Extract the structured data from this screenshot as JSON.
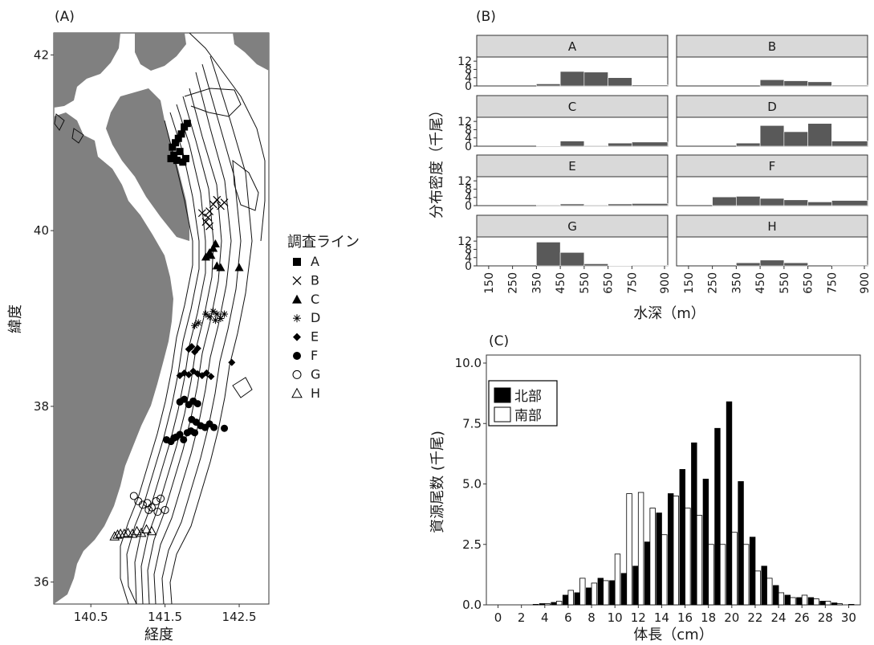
{
  "panel_a": {
    "label": "(A)",
    "xlabel": "経度",
    "ylabel": "緯度",
    "x_ticks": [
      "140.5",
      "141.5",
      "142.5"
    ],
    "y_ticks": [
      "36",
      "38",
      "40",
      "42"
    ],
    "legend_title": "調査ライン",
    "legend": [
      {
        "key": "A",
        "shape": "square-filled"
      },
      {
        "key": "B",
        "shape": "cross"
      },
      {
        "key": "C",
        "shape": "triangle-filled"
      },
      {
        "key": "D",
        "shape": "asterisk"
      },
      {
        "key": "E",
        "shape": "diamond-filled"
      },
      {
        "key": "F",
        "shape": "circle-filled"
      },
      {
        "key": "G",
        "shape": "circle-open"
      },
      {
        "key": "H",
        "shape": "triangle-open"
      }
    ]
  },
  "panel_b": {
    "label": "(B)",
    "xlabel": "水深（m）",
    "ylabel": "分布密度（千尾）"
  },
  "panel_c": {
    "label": "(C)",
    "xlabel": "体長（cm）",
    "ylabel": "資源尾数 (千尾)"
  },
  "chart_data": [
    {
      "type": "scatter",
      "panel": "A",
      "xlabel": "経度",
      "ylabel": "緯度",
      "xlim": [
        140.0,
        142.9
      ],
      "ylim": [
        35.75,
        42.25
      ],
      "x_ticks": [
        140.5,
        141.5,
        142.5
      ],
      "y_ticks": [
        36,
        38,
        40,
        42
      ],
      "land_color": "#808080",
      "series": [
        {
          "name": "A",
          "points": [
            [
              141.58,
              40.82
            ],
            [
              141.62,
              40.86
            ],
            [
              141.66,
              40.8
            ],
            [
              141.6,
              40.95
            ],
            [
              141.64,
              41.0
            ],
            [
              141.68,
              41.05
            ],
            [
              141.72,
              41.1
            ],
            [
              141.76,
              41.18
            ],
            [
              141.8,
              41.22
            ],
            [
              141.7,
              40.9
            ],
            [
              141.74,
              40.78
            ],
            [
              141.78,
              40.82
            ]
          ]
        },
        {
          "name": "B",
          "points": [
            [
              142.0,
              40.2
            ],
            [
              142.05,
              40.1
            ],
            [
              142.1,
              40.22
            ],
            [
              142.15,
              40.3
            ],
            [
              142.2,
              40.35
            ],
            [
              142.25,
              40.28
            ],
            [
              142.3,
              40.32
            ],
            [
              142.1,
              40.05
            ],
            [
              142.08,
              40.15
            ]
          ]
        },
        {
          "name": "C",
          "points": [
            [
              142.05,
              39.7
            ],
            [
              142.1,
              39.75
            ],
            [
              142.15,
              39.8
            ],
            [
              142.18,
              39.85
            ],
            [
              142.12,
              39.72
            ],
            [
              142.2,
              39.6
            ],
            [
              142.25,
              39.58
            ],
            [
              142.5,
              39.58
            ]
          ]
        },
        {
          "name": "D",
          "points": [
            [
              141.9,
              38.92
            ],
            [
              141.95,
              38.95
            ],
            [
              142.05,
              39.05
            ],
            [
              142.1,
              39.02
            ],
            [
              142.15,
              39.08
            ],
            [
              142.2,
              39.05
            ],
            [
              142.25,
              39.0
            ],
            [
              142.3,
              39.05
            ],
            [
              142.18,
              38.98
            ]
          ]
        },
        {
          "name": "E",
          "points": [
            [
              141.82,
              38.65
            ],
            [
              141.86,
              38.68
            ],
            [
              141.9,
              38.62
            ],
            [
              141.94,
              38.66
            ],
            [
              141.7,
              38.35
            ],
            [
              141.76,
              38.38
            ],
            [
              141.82,
              38.36
            ],
            [
              141.88,
              38.4
            ],
            [
              141.94,
              38.37
            ],
            [
              142.0,
              38.35
            ],
            [
              142.06,
              38.38
            ],
            [
              142.12,
              38.34
            ],
            [
              142.4,
              38.5
            ]
          ]
        },
        {
          "name": "F",
          "points": [
            [
              141.7,
              38.05
            ],
            [
              141.76,
              38.08
            ],
            [
              141.82,
              38.02
            ],
            [
              141.88,
              38.06
            ],
            [
              141.94,
              38.03
            ],
            [
              141.86,
              37.85
            ],
            [
              141.92,
              37.82
            ],
            [
              141.98,
              37.78
            ],
            [
              142.04,
              37.76
            ],
            [
              142.1,
              37.8
            ],
            [
              142.16,
              37.76
            ],
            [
              142.3,
              37.75
            ],
            [
              141.65,
              37.65
            ],
            [
              141.7,
              37.68
            ],
            [
              141.75,
              37.62
            ],
            [
              141.8,
              37.7
            ],
            [
              141.85,
              37.72
            ],
            [
              141.9,
              37.7
            ],
            [
              141.52,
              37.62
            ],
            [
              141.58,
              37.6
            ],
            [
              141.62,
              37.64
            ]
          ]
        },
        {
          "name": "G",
          "points": [
            [
              141.08,
              36.98
            ],
            [
              141.14,
              36.92
            ],
            [
              141.2,
              36.88
            ],
            [
              141.26,
              36.9
            ],
            [
              141.32,
              36.85
            ],
            [
              141.38,
              36.92
            ],
            [
              141.44,
              36.95
            ],
            [
              141.5,
              36.82
            ],
            [
              141.4,
              36.8
            ],
            [
              141.28,
              36.82
            ]
          ]
        },
        {
          "name": "H",
          "points": [
            [
              140.82,
              36.52
            ],
            [
              140.86,
              36.54
            ],
            [
              140.9,
              36.55
            ],
            [
              140.95,
              36.55
            ],
            [
              141.0,
              36.56
            ],
            [
              141.06,
              36.55
            ],
            [
              141.12,
              36.58
            ],
            [
              141.18,
              36.56
            ],
            [
              141.25,
              36.6
            ],
            [
              141.32,
              36.58
            ]
          ]
        }
      ]
    },
    {
      "type": "bar",
      "panel": "B",
      "ylabel": "分布密度（千尾）",
      "xlabel": "水深（m）",
      "categories": [
        "150",
        "200",
        "250",
        "300",
        "350",
        "400",
        "450",
        "500",
        "550",
        "600",
        "650",
        "700",
        "750",
        "800",
        "900"
      ],
      "tick_labels": [
        "150",
        "250",
        "350",
        "450",
        "550",
        "650",
        "750",
        "900"
      ],
      "ylim": [
        0,
        14
      ],
      "y_ticks": [
        0,
        4,
        8,
        12
      ],
      "bar_color": "#595959",
      "facet_strip_color": "#d9d9d9",
      "facets": [
        {
          "name": "A",
          "bins": [
            {
              "from": 350,
              "to": 450,
              "value": 1
            },
            {
              "from": 450,
              "to": 550,
              "value": 7
            },
            {
              "from": 550,
              "to": 650,
              "value": 6.7
            },
            {
              "from": 650,
              "to": 750,
              "value": 4
            },
            {
              "from": 750,
              "to": 900,
              "value": 0.5
            }
          ]
        },
        {
          "name": "B",
          "bins": [
            {
              "from": 450,
              "to": 550,
              "value": 3
            },
            {
              "from": 550,
              "to": 650,
              "value": 2.5
            },
            {
              "from": 650,
              "to": 750,
              "value": 2
            },
            {
              "from": 750,
              "to": 900,
              "value": 0.4
            }
          ]
        },
        {
          "name": "C",
          "bins": [
            {
              "from": 350,
              "to": 450,
              "value": 0.2
            },
            {
              "from": 450,
              "to": 550,
              "value": 2.5
            },
            {
              "from": 550,
              "to": 650,
              "value": 0.3
            },
            {
              "from": 650,
              "to": 750,
              "value": 1.5
            },
            {
              "from": 750,
              "to": 900,
              "value": 2
            }
          ]
        },
        {
          "name": "D",
          "bins": [
            {
              "from": 350,
              "to": 450,
              "value": 1.5
            },
            {
              "from": 450,
              "to": 550,
              "value": 10
            },
            {
              "from": 550,
              "to": 650,
              "value": 7
            },
            {
              "from": 650,
              "to": 750,
              "value": 11
            },
            {
              "from": 750,
              "to": 900,
              "value": 2.5
            }
          ]
        },
        {
          "name": "E",
          "bins": [
            {
              "from": 350,
              "to": 450,
              "value": 0.3
            },
            {
              "from": 450,
              "to": 550,
              "value": 0.8
            },
            {
              "from": 550,
              "to": 650,
              "value": 0.3
            },
            {
              "from": 650,
              "to": 750,
              "value": 0.8
            },
            {
              "from": 750,
              "to": 900,
              "value": 1
            }
          ]
        },
        {
          "name": "F",
          "bins": [
            {
              "from": 250,
              "to": 350,
              "value": 4.2
            },
            {
              "from": 350,
              "to": 450,
              "value": 4.5
            },
            {
              "from": 450,
              "to": 550,
              "value": 3.5
            },
            {
              "from": 550,
              "to": 650,
              "value": 2.8
            },
            {
              "from": 650,
              "to": 750,
              "value": 1.8
            },
            {
              "from": 750,
              "to": 900,
              "value": 2.5
            }
          ]
        },
        {
          "name": "G",
          "bins": [
            {
              "from": 350,
              "to": 450,
              "value": 11.5
            },
            {
              "from": 450,
              "to": 550,
              "value": 6.5
            },
            {
              "from": 550,
              "to": 650,
              "value": 1
            },
            {
              "from": 650,
              "to": 750,
              "value": 0.2
            },
            {
              "from": 750,
              "to": 900,
              "value": 0.3
            }
          ]
        },
        {
          "name": "H",
          "bins": [
            {
              "from": 350,
              "to": 450,
              "value": 1.5
            },
            {
              "from": 450,
              "to": 550,
              "value": 2.8
            },
            {
              "from": 550,
              "to": 650,
              "value": 1.5
            },
            {
              "from": 750,
              "to": 900,
              "value": 0.4
            }
          ]
        }
      ]
    },
    {
      "type": "bar",
      "panel": "C",
      "xlabel": "体長（cm）",
      "ylabel": "資源尾数 (千尾)",
      "x": [
        3,
        4,
        5,
        6,
        7,
        8,
        9,
        10,
        11,
        12,
        13,
        14,
        15,
        16,
        17,
        18,
        19,
        20,
        21,
        22,
        23,
        24,
        25,
        26,
        27,
        28,
        29,
        30
      ],
      "xlim": [
        -1,
        31
      ],
      "x_ticks": [
        0,
        2,
        4,
        6,
        8,
        10,
        12,
        14,
        16,
        18,
        20,
        22,
        24,
        26,
        28,
        30
      ],
      "ylim": [
        0,
        10
      ],
      "y_ticks": [
        0.0,
        2.5,
        5.0,
        7.5,
        10.0
      ],
      "y_tick_labels": [
        "0.0",
        "2.5",
        "5.0",
        "7.5",
        "10.0"
      ],
      "series": [
        {
          "name": "北部",
          "color": "#000000",
          "values": [
            0,
            0.05,
            0.1,
            0.4,
            0.5,
            0.7,
            1.1,
            1.0,
            1.3,
            1.6,
            2.6,
            3.8,
            4.6,
            5.6,
            6.7,
            5.2,
            7.3,
            8.4,
            5.1,
            2.8,
            1.6,
            0.8,
            0.4,
            0.3,
            0.3,
            0.15,
            0.08,
            0
          ]
        },
        {
          "name": "南部",
          "color": "#ffffff",
          "values": [
            0.02,
            0.05,
            0.15,
            0.6,
            1.1,
            0.9,
            1.0,
            2.1,
            4.6,
            4.65,
            4.0,
            2.9,
            4.5,
            4.0,
            3.7,
            2.5,
            2.5,
            3.0,
            2.5,
            1.4,
            1.1,
            0.5,
            0.3,
            0.4,
            0.25,
            0.15,
            0.05,
            0.02
          ]
        }
      ]
    }
  ]
}
